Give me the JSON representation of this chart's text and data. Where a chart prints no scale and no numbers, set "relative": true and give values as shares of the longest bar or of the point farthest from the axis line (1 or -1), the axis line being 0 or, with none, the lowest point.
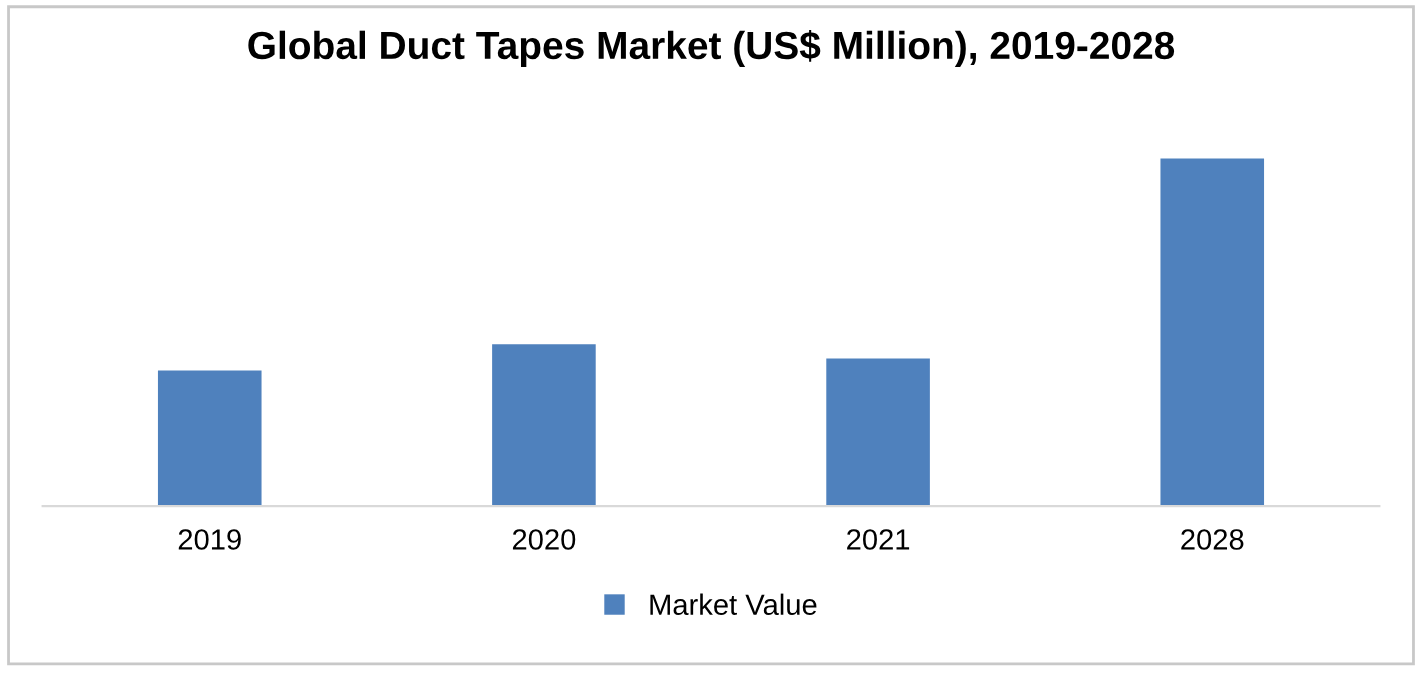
{
  "chart_data": {
    "type": "bar",
    "title": "Global Duct Tapes Market (US$ Million), 2019-2028",
    "categories": [
      "2019",
      "2020",
      "2021",
      "2028"
    ],
    "series": [
      {
        "name": "Market Value",
        "color": "#4f81bd",
        "values": [
          0.39,
          0.466,
          0.425,
          1
        ]
      }
    ],
    "relative": true,
    "legend": "bottom",
    "grid": false
  }
}
